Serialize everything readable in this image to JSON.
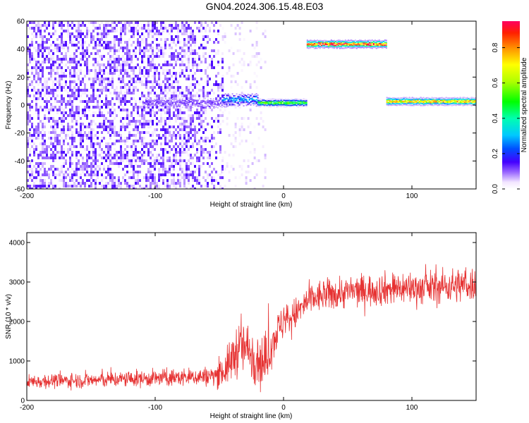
{
  "title": "GN04.2024.306.15.48.E03",
  "chart_data": [
    {
      "type": "heatmap",
      "xlabel": "Height of straight line (km)",
      "ylabel": "Frequency (Hz)",
      "xlim": [
        -200,
        150
      ],
      "ylim": [
        -60,
        60
      ],
      "x_ticks": [
        -200,
        -100,
        0,
        100
      ],
      "y_ticks": [
        -60,
        -40,
        -20,
        0,
        20,
        40,
        60
      ],
      "colorbar": {
        "label": "Normalized spectral amplitude",
        "range": [
          0.0,
          0.95
        ],
        "ticks": [
          0.0,
          0.2,
          0.4,
          0.6,
          0.8
        ],
        "tick_labels": [
          "0.0",
          "0.2",
          "0.4",
          "0.6",
          "0.8"
        ]
      },
      "features": [
        {
          "description": "diffuse low-amplitude noise",
          "x_range": [
            -200,
            -48
          ],
          "freq_range": [
            -60,
            60
          ],
          "amplitude": 0.05
        },
        {
          "description": "scattered faint noise",
          "x_range": [
            -48,
            -15
          ],
          "freq_range": [
            -60,
            60
          ],
          "amplitude": 0.02
        },
        {
          "description": "emerging band",
          "x_range": [
            -110,
            -40
          ],
          "freq_center": 2,
          "amplitude": 0.12
        },
        {
          "description": "band",
          "x_range": [
            -48,
            -20
          ],
          "freq_center": 4,
          "amplitude": 0.3
        },
        {
          "description": "band",
          "x_range": [
            -20,
            18
          ],
          "freq_center": 2,
          "amplitude": 0.55
        },
        {
          "description": "band",
          "x_range": [
            18,
            80
          ],
          "freq_center": 44,
          "amplitude": 0.92
        },
        {
          "description": "band",
          "x_range": [
            80,
            150
          ],
          "freq_center": 3,
          "amplitude": 0.78
        }
      ]
    },
    {
      "type": "line",
      "xlabel": "Height of straight line (km)",
      "ylabel": "SNR (10 * v/v)",
      "xlim": [
        -200,
        150
      ],
      "ylim": [
        0,
        4250
      ],
      "x_ticks": [
        -200,
        -100,
        0,
        100
      ],
      "y_ticks": [
        0,
        1000,
        2000,
        3000,
        4000
      ],
      "color": "#e63232",
      "series": [
        {
          "x": [
            -200,
            -175,
            -150,
            -125,
            -100,
            -75,
            -55,
            -45,
            -35,
            -28,
            -20,
            -15,
            -10,
            -5,
            0,
            10,
            20,
            30,
            50,
            70,
            90,
            110,
            130,
            150
          ],
          "values": [
            480,
            500,
            510,
            540,
            560,
            590,
            620,
            780,
            1350,
            1300,
            1100,
            900,
            1350,
            1750,
            2000,
            2200,
            2550,
            2650,
            2750,
            2800,
            2850,
            2850,
            2900,
            2950
          ],
          "noise_amplitude": [
            160,
            170,
            180,
            190,
            200,
            210,
            230,
            420,
            650,
            600,
            700,
            650,
            500,
            450,
            420,
            380,
            380,
            380,
            380,
            380,
            390,
            390,
            400,
            420
          ]
        }
      ]
    }
  ]
}
